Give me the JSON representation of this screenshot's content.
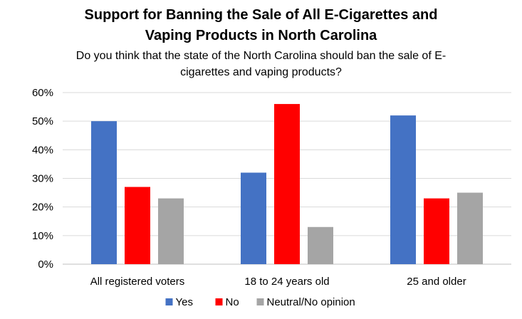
{
  "chart_data": {
    "type": "bar",
    "title_line1": "Support for Banning the Sale of All E-Cigarettes and",
    "title_line2": "Vaping Products in North Carolina",
    "subtitle_line1": "Do you think that the state of the North Carolina should ban the sale of E-",
    "subtitle_line2": "cigarettes and vaping products?",
    "categories": [
      "All registered voters",
      "18 to 24 years old",
      "25 and older"
    ],
    "series": [
      {
        "name": "Yes",
        "color": "#4472C4",
        "values": [
          50,
          32,
          52
        ]
      },
      {
        "name": "No",
        "color": "#FF0000",
        "values": [
          27,
          56,
          23
        ]
      },
      {
        "name": "Neutral/No opinion",
        "color": "#A5A5A5",
        "values": [
          23,
          13,
          25
        ]
      }
    ],
    "ylim": [
      0,
      60
    ],
    "yticks": [
      0,
      10,
      20,
      30,
      40,
      50,
      60
    ],
    "ytick_labels": [
      "0%",
      "10%",
      "20%",
      "30%",
      "40%",
      "50%",
      "60%"
    ],
    "grid": true,
    "legend_position": "bottom"
  }
}
